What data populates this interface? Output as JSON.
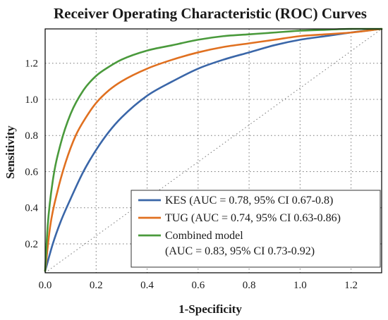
{
  "chart_data": {
    "type": "line",
    "title": "Receiver Operating Characteristic (ROC) Curves",
    "xlabel": "1-Specificity",
    "ylabel": "Sensitivity",
    "xlim": [
      0.0,
      1.32
    ],
    "ylim": [
      0.04,
      1.39
    ],
    "x_ticks": [
      "0.0",
      "0.2",
      "0.4",
      "0.6",
      "0.8",
      "1.0",
      "1.2"
    ],
    "x_tick_values": [
      0.0,
      0.2,
      0.4,
      0.6,
      0.8,
      1.0,
      1.2
    ],
    "y_ticks": [
      "0.2",
      "0.4",
      "0.6",
      "0.8",
      "1.0",
      "1.2"
    ],
    "y_tick_values": [
      0.2,
      0.4,
      0.6,
      0.8,
      1.0,
      1.2
    ],
    "grid": true,
    "legend_position": "bottom-right",
    "series": [
      {
        "name": "KES (AUC = 0.78, 95% CI 0.67-0.8)",
        "legend_lines": [
          "KES (AUC = 0.78, 95% CI 0.67-0.8)"
        ],
        "color": "#3a66a8",
        "x": [
          0.0,
          0.03,
          0.06,
          0.1,
          0.15,
          0.2,
          0.25,
          0.3,
          0.4,
          0.5,
          0.6,
          0.7,
          0.8,
          0.9,
          1.0,
          1.1,
          1.2,
          1.32
        ],
        "y": [
          0.05,
          0.2,
          0.32,
          0.45,
          0.6,
          0.72,
          0.82,
          0.9,
          1.02,
          1.1,
          1.17,
          1.22,
          1.26,
          1.3,
          1.33,
          1.35,
          1.37,
          1.39
        ]
      },
      {
        "name": "TUG (AUC = 0.74, 95% CI 0.63-0.86)",
        "legend_lines": [
          "TUG (AUC = 0.74, 95% CI 0.63-0.86)"
        ],
        "color": "#e07020",
        "x": [
          0.0,
          0.02,
          0.05,
          0.08,
          0.12,
          0.16,
          0.2,
          0.25,
          0.3,
          0.4,
          0.5,
          0.6,
          0.7,
          0.8,
          0.9,
          1.0,
          1.1,
          1.2,
          1.32
        ],
        "y": [
          0.05,
          0.3,
          0.5,
          0.65,
          0.8,
          0.9,
          0.98,
          1.05,
          1.1,
          1.17,
          1.22,
          1.26,
          1.29,
          1.31,
          1.33,
          1.35,
          1.36,
          1.37,
          1.39
        ]
      },
      {
        "name": "Combined model (AUC = 0.83, 95% CI 0.73-0.92)",
        "legend_lines": [
          "Combined model",
          "(AUC = 0.83, 95% CI 0.73-0.92)"
        ],
        "color": "#4a9a3c",
        "x": [
          0.0,
          0.01,
          0.03,
          0.06,
          0.1,
          0.15,
          0.2,
          0.25,
          0.3,
          0.4,
          0.5,
          0.6,
          0.7,
          0.8,
          0.9,
          1.0,
          1.1,
          1.2,
          1.32
        ],
        "y": [
          0.05,
          0.3,
          0.55,
          0.75,
          0.92,
          1.05,
          1.13,
          1.18,
          1.22,
          1.27,
          1.3,
          1.33,
          1.35,
          1.36,
          1.37,
          1.38,
          1.385,
          1.39,
          1.39
        ]
      }
    ],
    "reference_line": {
      "x": [
        0.0,
        1.32
      ],
      "y": [
        0.04,
        1.39
      ]
    }
  }
}
